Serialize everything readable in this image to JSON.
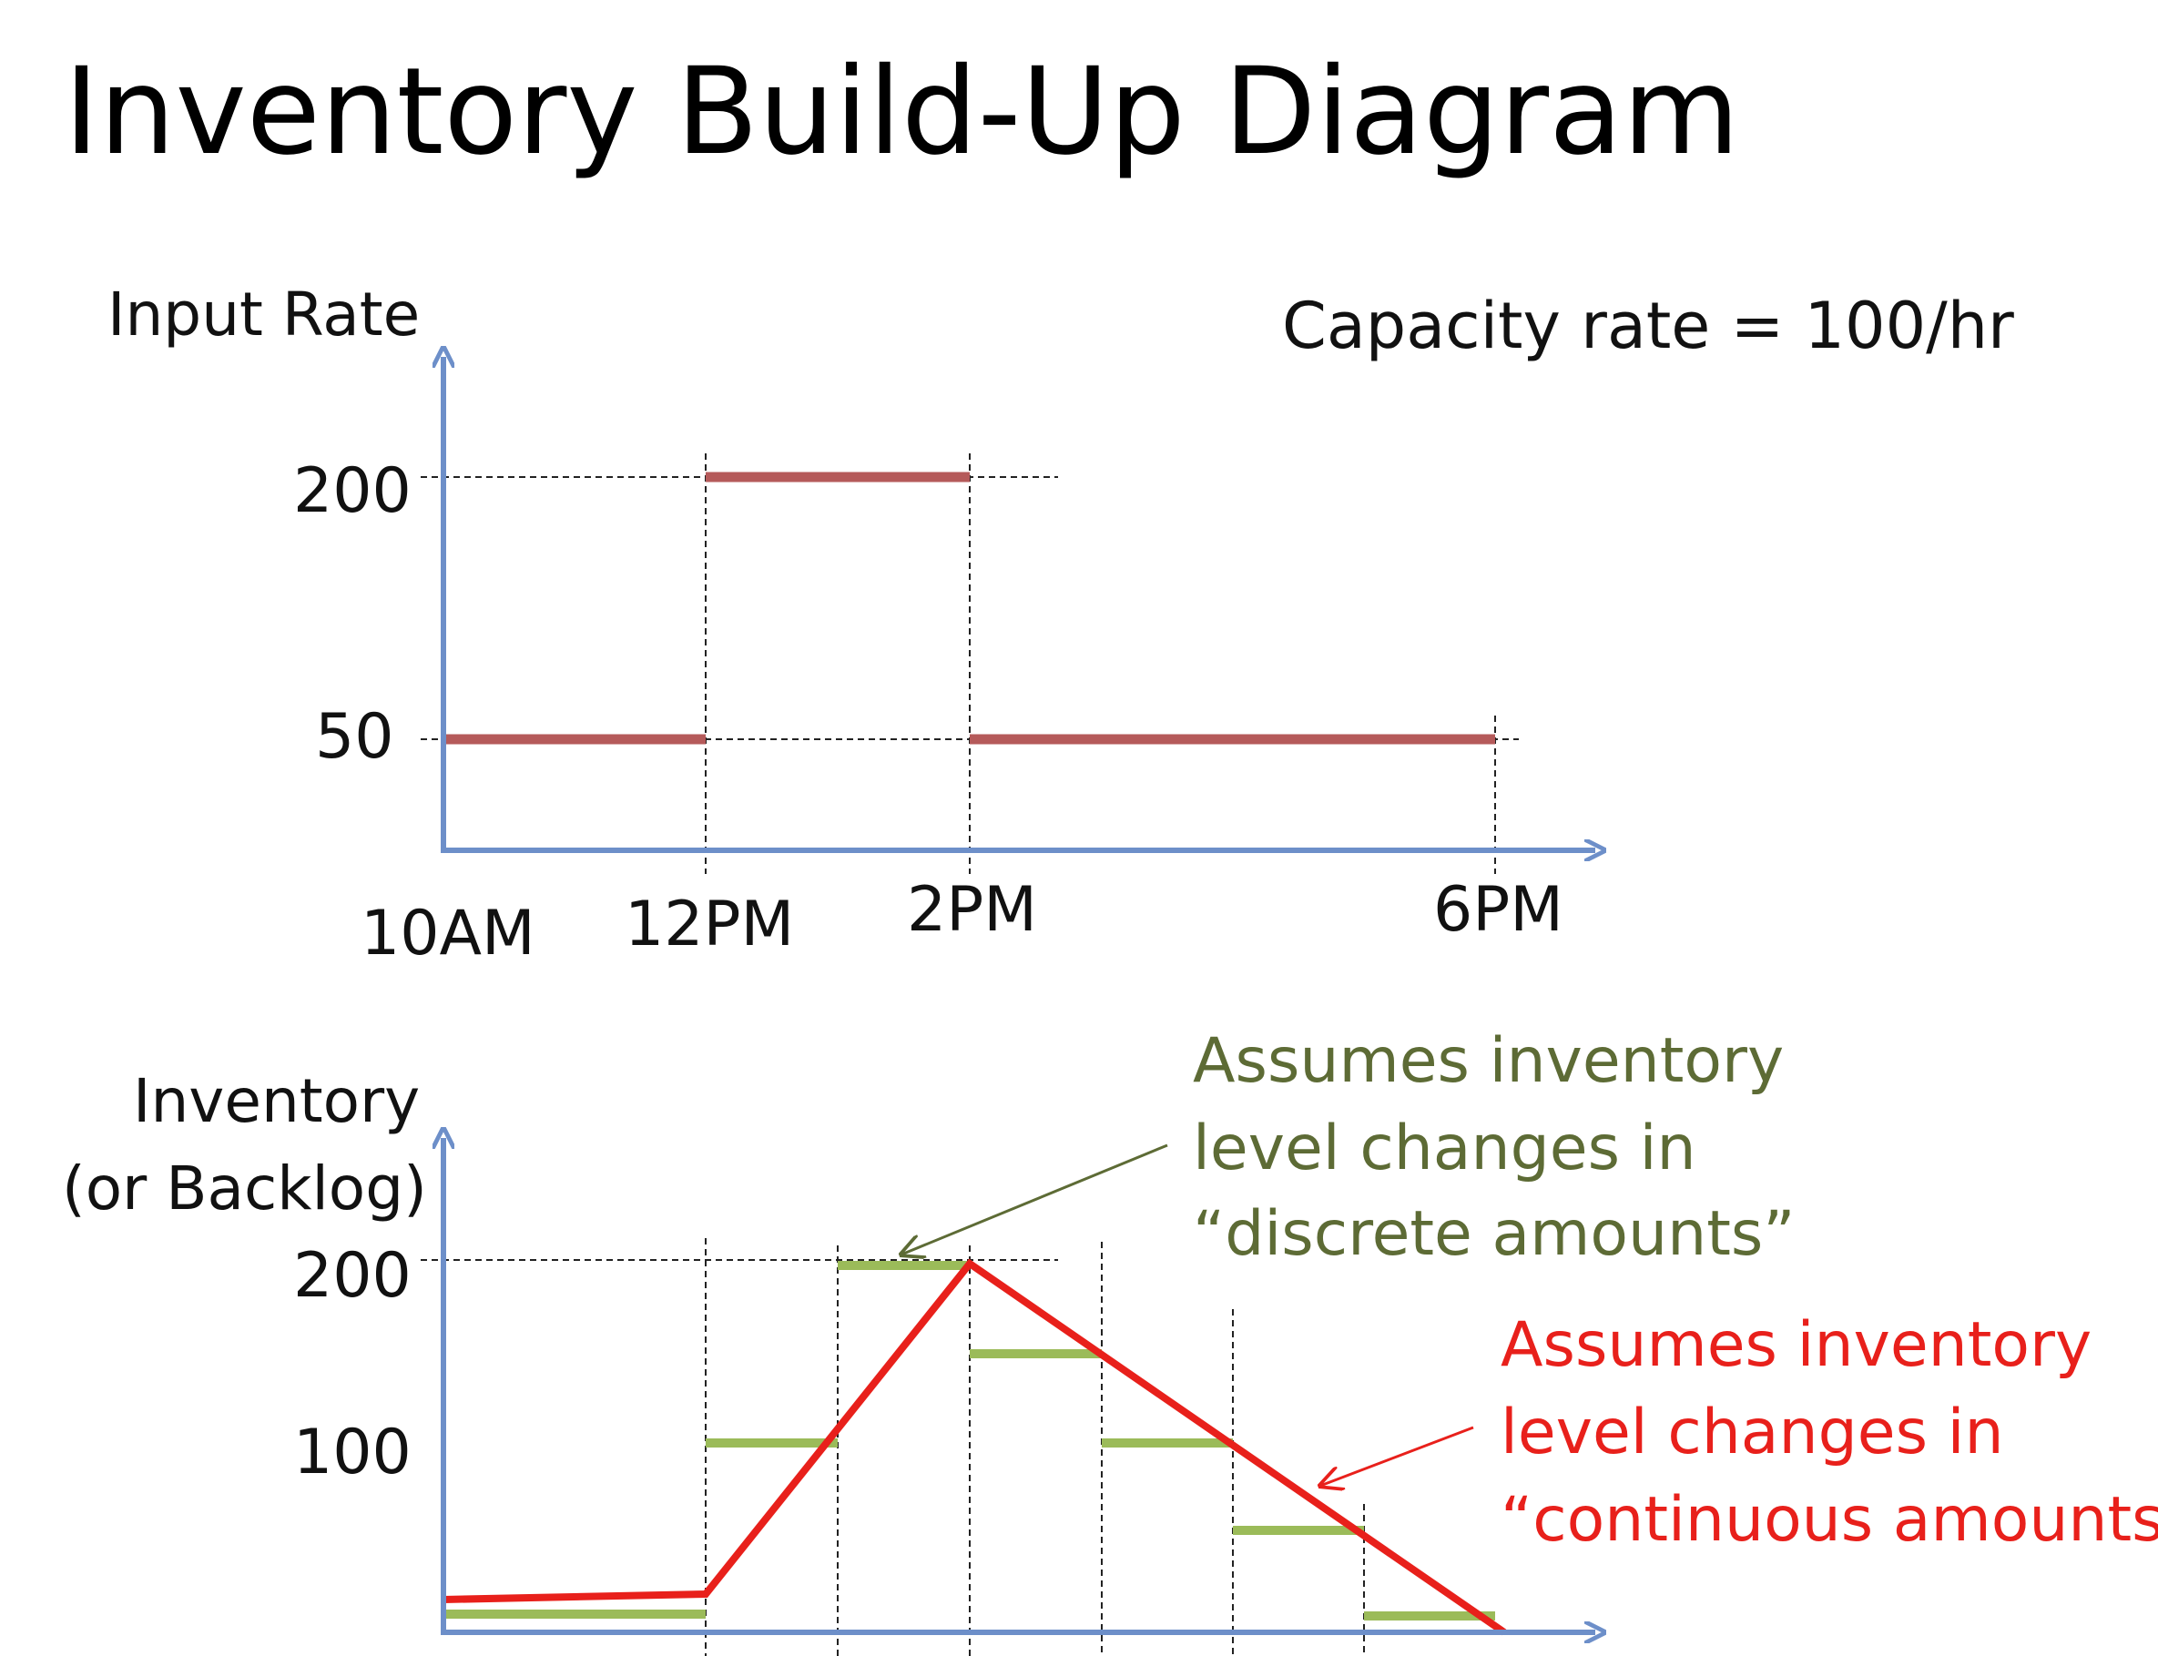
{
  "title": "Inventory Build-Up Diagram",
  "colors": {
    "axis": "#6d8fc9",
    "rate_line": "#b55a5a",
    "continuous_line": "#e8201b",
    "discrete_steps": "#9bbb59",
    "note_green": "#5d6b35",
    "note_red": "#e8201b"
  },
  "top_chart": {
    "ylabel": "Input Rate",
    "capacity_label": "Capacity rate = 100/hr",
    "y_ticks": [
      "200",
      "50"
    ],
    "x_ticks": [
      "10AM",
      "12PM",
      "2PM",
      "6PM"
    ]
  },
  "bottom_chart": {
    "ylabel_line1": "Inventory",
    "ylabel_line2": "(or Backlog)",
    "y_ticks": [
      "200",
      "100"
    ],
    "note_discrete": [
      "Assumes inventory",
      "level changes in",
      "“discrete amounts”"
    ],
    "note_continuous": [
      "Assumes inventory",
      "level changes in",
      "“continuous amounts”"
    ]
  },
  "chart_data": [
    {
      "type": "line",
      "title": "",
      "ylabel": "Input Rate",
      "xlabel": "",
      "x_ticks": [
        "10AM",
        "12PM",
        "2PM",
        "6PM"
      ],
      "series": [
        {
          "segments": [
            {
              "from": "10AM",
              "to": "12PM",
              "value": 50
            },
            {
              "from": "12PM",
              "to": "2PM",
              "value": 200
            },
            {
              "from": "2PM",
              "to": "6PM",
              "value": 50
            }
          ]
        }
      ]
    },
    {
      "type": "line",
      "title": "",
      "ylabel": "Inventory (or Backlog)",
      "y_ticks": [
        200,
        100
      ],
      "series": [
        {
          "name": "continuous",
          "points_hours_from_10AM": [
            [
              0,
              0
            ],
            [
              2,
              0
            ],
            [
              4,
              200
            ],
            [
              8,
              0
            ]
          ]
        },
        {
          "name": "discrete",
          "steps_hours_from_10AM": [
            [
              0,
              0
            ],
            [
              2,
              100
            ],
            [
              3,
              200
            ],
            [
              4,
              150
            ],
            [
              5,
              100
            ],
            [
              6,
              50
            ],
            [
              7,
              0
            ]
          ]
        }
      ]
    }
  ]
}
